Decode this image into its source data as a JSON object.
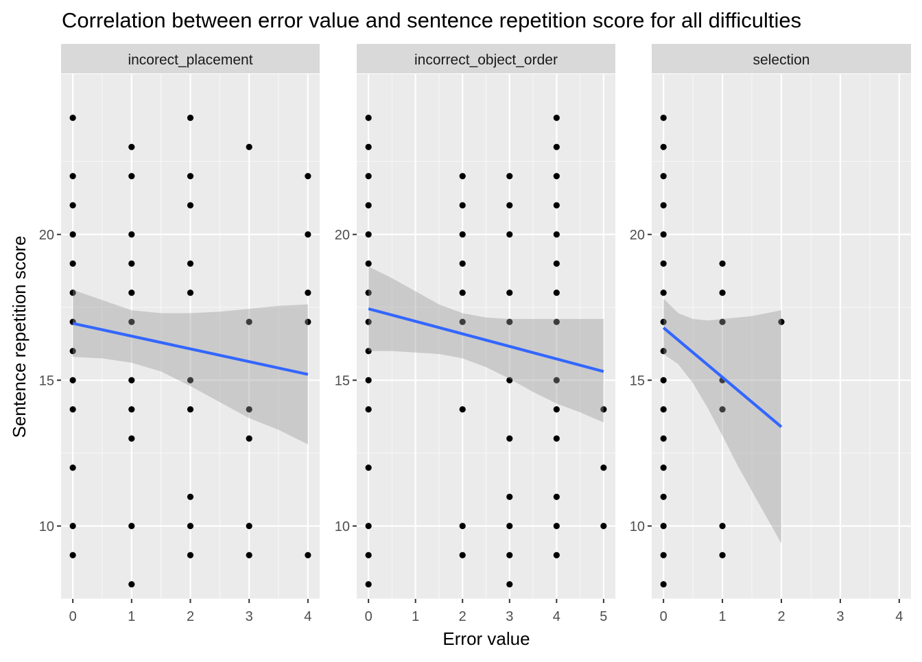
{
  "chart_data": {
    "type": "scatter",
    "title": "Correlation between error value and sentence repetition score for all difficulties",
    "xlabel": "Error value",
    "ylabel": "Sentence repetition score",
    "ylim": [
      7.5,
      25.5
    ],
    "y_ticks": [
      10,
      15,
      20
    ],
    "grid": true,
    "colors": {
      "panel_background": "#ebebeb",
      "strip_background": "#d9d9d9",
      "grid_major": "#ffffff",
      "points": "#000000",
      "fit_line": "#3366ff",
      "confidence_band": "#999999"
    },
    "panels": [
      {
        "name": "incorect_placement",
        "xlim": [
          -0.2,
          4.2
        ],
        "x_ticks": [
          0,
          1,
          2,
          3,
          4
        ],
        "points": [
          [
            0,
            24
          ],
          [
            0,
            22
          ],
          [
            0,
            21
          ],
          [
            0,
            20
          ],
          [
            0,
            19
          ],
          [
            0,
            18
          ],
          [
            0,
            17
          ],
          [
            0,
            16
          ],
          [
            0,
            15
          ],
          [
            0,
            14
          ],
          [
            0,
            12
          ],
          [
            0,
            10
          ],
          [
            0,
            9
          ],
          [
            1,
            23
          ],
          [
            1,
            22
          ],
          [
            1,
            20
          ],
          [
            1,
            19
          ],
          [
            1,
            18
          ],
          [
            1,
            17
          ],
          [
            1,
            15
          ],
          [
            1,
            14
          ],
          [
            1,
            13
          ],
          [
            1,
            10
          ],
          [
            1,
            8
          ],
          [
            2,
            24
          ],
          [
            2,
            22
          ],
          [
            2,
            21
          ],
          [
            2,
            19
          ],
          [
            2,
            18
          ],
          [
            2,
            15
          ],
          [
            2,
            14
          ],
          [
            2,
            11
          ],
          [
            2,
            10
          ],
          [
            2,
            9
          ],
          [
            3,
            23
          ],
          [
            3,
            17
          ],
          [
            3,
            14
          ],
          [
            3,
            13
          ],
          [
            3,
            10
          ],
          [
            3,
            9
          ],
          [
            4,
            22
          ],
          [
            4,
            20
          ],
          [
            4,
            18
          ],
          [
            4,
            17
          ],
          [
            4,
            9
          ]
        ],
        "fit": {
          "x": [
            0,
            4
          ],
          "y": [
            16.95,
            15.2
          ]
        },
        "band": {
          "x": [
            0,
            0.5,
            1,
            1.5,
            2,
            2.5,
            3,
            3.5,
            4
          ],
          "lower": [
            15.8,
            15.75,
            15.6,
            15.3,
            14.8,
            14.25,
            13.7,
            13.3,
            12.8
          ],
          "upper": [
            18.1,
            17.75,
            17.4,
            17.3,
            17.3,
            17.35,
            17.45,
            17.55,
            17.6
          ]
        }
      },
      {
        "name": "incorrect_object_order",
        "xlim": [
          -0.25,
          5.25
        ],
        "x_ticks": [
          0,
          1,
          2,
          3,
          4,
          5
        ],
        "points": [
          [
            0,
            24
          ],
          [
            0,
            23
          ],
          [
            0,
            22
          ],
          [
            0,
            21
          ],
          [
            0,
            20
          ],
          [
            0,
            19
          ],
          [
            0,
            18
          ],
          [
            0,
            17
          ],
          [
            0,
            16
          ],
          [
            0,
            15
          ],
          [
            0,
            14
          ],
          [
            0,
            12
          ],
          [
            0,
            10
          ],
          [
            0,
            9
          ],
          [
            0,
            8
          ],
          [
            2,
            22
          ],
          [
            2,
            21
          ],
          [
            2,
            20
          ],
          [
            2,
            19
          ],
          [
            2,
            18
          ],
          [
            2,
            17
          ],
          [
            2,
            14
          ],
          [
            2,
            10
          ],
          [
            2,
            9
          ],
          [
            3,
            22
          ],
          [
            3,
            21
          ],
          [
            3,
            20
          ],
          [
            3,
            18
          ],
          [
            3,
            17
          ],
          [
            3,
            15
          ],
          [
            3,
            13
          ],
          [
            3,
            11
          ],
          [
            3,
            10
          ],
          [
            3,
            9
          ],
          [
            3,
            8
          ],
          [
            4,
            24
          ],
          [
            4,
            23
          ],
          [
            4,
            22
          ],
          [
            4,
            21
          ],
          [
            4,
            20
          ],
          [
            4,
            19
          ],
          [
            4,
            18
          ],
          [
            4,
            17
          ],
          [
            4,
            15
          ],
          [
            4,
            14
          ],
          [
            4,
            13
          ],
          [
            4,
            11
          ],
          [
            4,
            10
          ],
          [
            4,
            9
          ],
          [
            5,
            14
          ],
          [
            5,
            12
          ],
          [
            5,
            10
          ]
        ],
        "fit": {
          "x": [
            0,
            5
          ],
          "y": [
            17.45,
            15.3
          ]
        },
        "band": {
          "x": [
            0,
            0.5,
            1,
            1.5,
            2,
            2.5,
            3,
            3.5,
            4,
            4.5,
            5
          ],
          "lower": [
            16.0,
            16.0,
            15.95,
            15.9,
            15.75,
            15.45,
            15.05,
            14.6,
            14.2,
            13.9,
            13.55
          ],
          "upper": [
            18.9,
            18.5,
            18.05,
            17.6,
            17.3,
            17.15,
            17.1,
            17.1,
            17.1,
            17.1,
            17.1
          ]
        }
      },
      {
        "name": "selection",
        "xlim": [
          -0.2,
          4.2
        ],
        "x_ticks": [
          0,
          1,
          2,
          3,
          4
        ],
        "points": [
          [
            0,
            24
          ],
          [
            0,
            23
          ],
          [
            0,
            22
          ],
          [
            0,
            21
          ],
          [
            0,
            20
          ],
          [
            0,
            19
          ],
          [
            0,
            18
          ],
          [
            0,
            17
          ],
          [
            0,
            16
          ],
          [
            0,
            15
          ],
          [
            0,
            14
          ],
          [
            0,
            13
          ],
          [
            0,
            12
          ],
          [
            0,
            11
          ],
          [
            0,
            10
          ],
          [
            0,
            9
          ],
          [
            0,
            8
          ],
          [
            1,
            19
          ],
          [
            1,
            18
          ],
          [
            1,
            17
          ],
          [
            1,
            15
          ],
          [
            1,
            14
          ],
          [
            1,
            10
          ],
          [
            1,
            9
          ],
          [
            2,
            17
          ]
        ],
        "fit": {
          "x": [
            0,
            2
          ],
          "y": [
            16.8,
            13.4
          ]
        },
        "band": {
          "x": [
            0,
            0.25,
            0.5,
            0.75,
            1,
            1.25,
            1.5,
            1.75,
            2
          ],
          "lower": [
            15.9,
            15.55,
            14.9,
            14.05,
            13.1,
            12.1,
            11.2,
            10.3,
            9.4
          ],
          "upper": [
            17.8,
            17.3,
            17.1,
            17.05,
            17.1,
            17.15,
            17.2,
            17.3,
            17.4
          ]
        }
      }
    ]
  }
}
